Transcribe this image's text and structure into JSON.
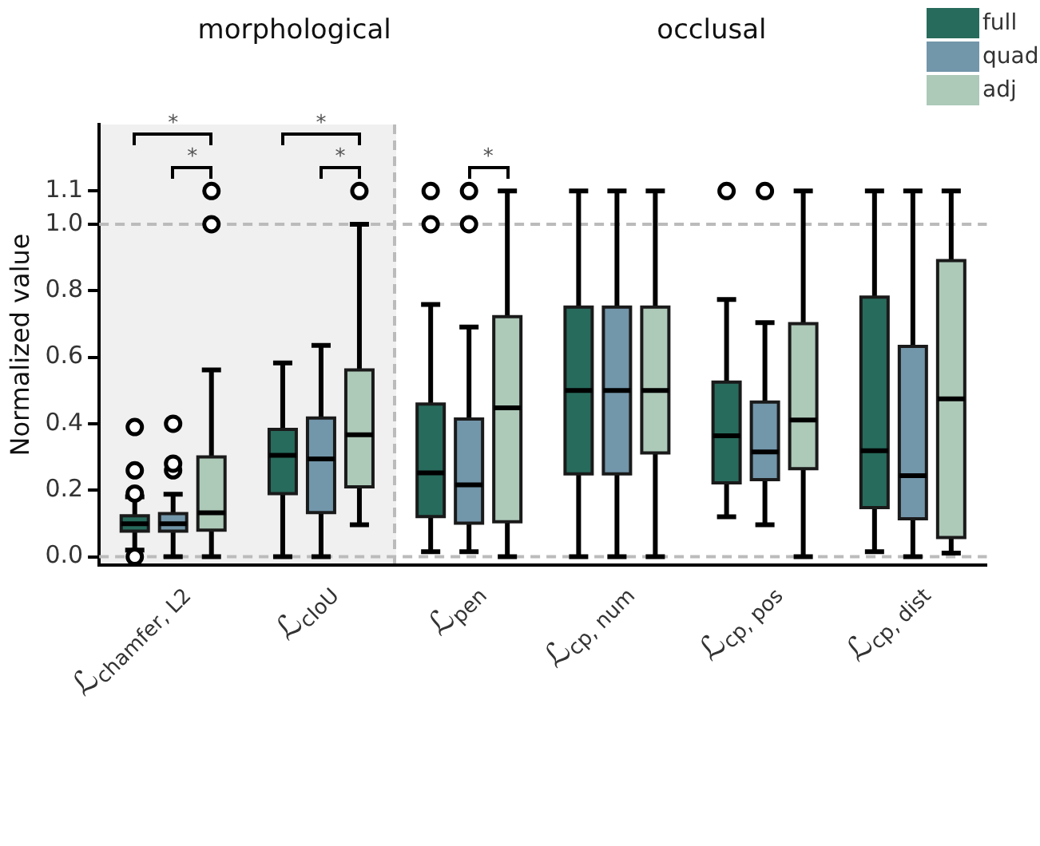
{
  "chart_data": {
    "type": "box",
    "ylabel": "Normalized value",
    "categories": [
      "ℒ$_{chamfer, L2}$",
      "ℒ$_{cIoU}$",
      "ℒ$_{pen}$",
      "ℒ$_{cp, num}$",
      "ℒ$_{cp, pos}$",
      "ℒ$_{cp, dist}$"
    ],
    "series": [
      {
        "name": "full",
        "color": "#276b5c",
        "boxes": [
          {
            "low": 0.02,
            "q1": 0.077,
            "median": 0.099,
            "q3": 0.123,
            "high": 0.18,
            "outliers": [
              0,
              0.19,
              0.26,
              0.39
            ]
          },
          {
            "low": 0,
            "q1": 0.19,
            "median": 0.305,
            "q3": 0.383,
            "high": 0.583
          },
          {
            "low": 0.015,
            "q1": 0.121,
            "median": 0.252,
            "q3": 0.459,
            "high": 0.759,
            "outliers": [
              1.0,
              1.1
            ]
          },
          {
            "low": 0,
            "q1": 0.249,
            "median": 0.5,
            "q3": 0.751,
            "high": 1.1
          },
          {
            "low": 0.12,
            "q1": 0.222,
            "median": 0.364,
            "q3": 0.525,
            "high": 0.774,
            "outliers": [
              1.1
            ]
          },
          {
            "low": 0.015,
            "q1": 0.148,
            "median": 0.319,
            "q3": 0.781,
            "high": 1.1
          }
        ]
      },
      {
        "name": "quad",
        "color": "#7296aa",
        "boxes": [
          {
            "low": 0,
            "q1": 0.077,
            "median": 0.099,
            "q3": 0.13,
            "high": 0.188,
            "outliers": [
              0.26,
              0.28,
              0.4
            ]
          },
          {
            "low": 0,
            "q1": 0.133,
            "median": 0.294,
            "q3": 0.417,
            "high": 0.636
          },
          {
            "low": 0.015,
            "q1": 0.101,
            "median": 0.216,
            "q3": 0.414,
            "high": 0.691,
            "outliers": [
              1.0,
              1.1
            ]
          },
          {
            "low": 0,
            "q1": 0.249,
            "median": 0.5,
            "q3": 0.751,
            "high": 1.1
          },
          {
            "low": 0.096,
            "q1": 0.232,
            "median": 0.315,
            "q3": 0.465,
            "high": 0.704,
            "outliers": [
              1.1
            ]
          },
          {
            "low": 0,
            "q1": 0.114,
            "median": 0.244,
            "q3": 0.633,
            "high": 1.1
          }
        ]
      },
      {
        "name": "adj",
        "color": "#adc9b8",
        "boxes": [
          {
            "low": 0,
            "q1": 0.08,
            "median": 0.132,
            "q3": 0.3,
            "high": 0.562,
            "outliers": [
              1.0,
              1.1
            ]
          },
          {
            "low": 0.096,
            "q1": 0.21,
            "median": 0.367,
            "q3": 0.562,
            "high": 1.0,
            "outliers": [
              1.1
            ]
          },
          {
            "low": 0,
            "q1": 0.105,
            "median": 0.448,
            "q3": 0.722,
            "high": 1.1
          },
          {
            "low": 0,
            "q1": 0.312,
            "median": 0.5,
            "q3": 0.751,
            "high": 1.1
          },
          {
            "low": 0,
            "q1": 0.265,
            "median": 0.411,
            "q3": 0.701,
            "high": 1.1
          },
          {
            "low": 0.011,
            "q1": 0.058,
            "median": 0.475,
            "q3": 0.891,
            "high": 1.1
          }
        ]
      }
    ],
    "ylim": [
      -0.025,
      1.3
    ],
    "yticks": [
      {
        "value": 0,
        "label": "0.0"
      },
      0.2,
      0.4,
      0.6,
      0.8,
      {
        "value": 1,
        "label": "1.0"
      },
      1.1
    ],
    "ref_lines": [
      {
        "axis": "y",
        "value": 0,
        "color": "#bbbbbb",
        "line_style": "dashed"
      },
      {
        "axis": "y",
        "value": 1,
        "color": "#bbbbbb",
        "line_style": "dashed"
      }
    ],
    "annotations": [
      "morphological",
      "occlusal",
      "*",
      "*",
      "*",
      "*",
      "*"
    ],
    "legend": "top right",
    "grid": false,
    "marker": "circle"
  }
}
